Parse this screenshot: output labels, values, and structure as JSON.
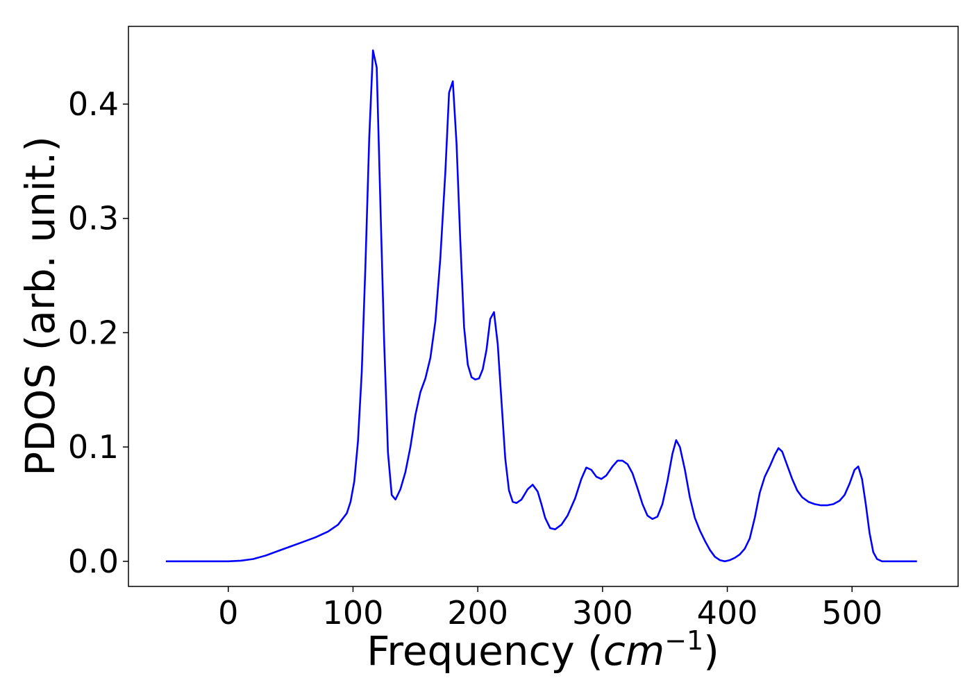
{
  "chart_data": {
    "type": "line",
    "title": "",
    "xlabel_main": "Frequency (",
    "xlabel_italic": "cm",
    "xlabel_sup": "−1",
    "xlabel_end": ")",
    "ylabel": "PDOS (arb. unit.)",
    "xlim": [
      -80,
      585
    ],
    "ylim": [
      -0.022,
      0.468
    ],
    "x_ticks": [
      0,
      100,
      200,
      300,
      400,
      500
    ],
    "x_tick_labels": [
      "0",
      "100",
      "200",
      "300",
      "400",
      "500"
    ],
    "y_ticks": [
      0.0,
      0.1,
      0.2,
      0.3,
      0.4
    ],
    "y_tick_labels": [
      "0.0",
      "0.1",
      "0.2",
      "0.3",
      "0.4"
    ],
    "grid": false,
    "series": [
      {
        "color": "#0000ff",
        "points": [
          [
            -50,
            0.0
          ],
          [
            0,
            0.0
          ],
          [
            10,
            0.0005
          ],
          [
            20,
            0.002
          ],
          [
            30,
            0.005
          ],
          [
            40,
            0.009
          ],
          [
            50,
            0.013
          ],
          [
            60,
            0.017
          ],
          [
            70,
            0.021
          ],
          [
            80,
            0.026
          ],
          [
            88,
            0.032
          ],
          [
            95,
            0.042
          ],
          [
            98,
            0.052
          ],
          [
            101,
            0.07
          ],
          [
            104,
            0.105
          ],
          [
            107,
            0.165
          ],
          [
            110,
            0.26
          ],
          [
            113,
            0.37
          ],
          [
            116,
            0.447
          ],
          [
            119,
            0.432
          ],
          [
            122,
            0.31
          ],
          [
            125,
            0.19
          ],
          [
            128,
            0.095
          ],
          [
            131,
            0.058
          ],
          [
            134,
            0.054
          ],
          [
            138,
            0.063
          ],
          [
            142,
            0.078
          ],
          [
            146,
            0.1
          ],
          [
            150,
            0.128
          ],
          [
            154,
            0.148
          ],
          [
            158,
            0.16
          ],
          [
            162,
            0.178
          ],
          [
            166,
            0.21
          ],
          [
            170,
            0.265
          ],
          [
            174,
            0.34
          ],
          [
            177,
            0.41
          ],
          [
            180,
            0.42
          ],
          [
            183,
            0.365
          ],
          [
            186,
            0.28
          ],
          [
            189,
            0.205
          ],
          [
            192,
            0.172
          ],
          [
            195,
            0.161
          ],
          [
            198,
            0.159
          ],
          [
            201,
            0.16
          ],
          [
            204,
            0.168
          ],
          [
            207,
            0.185
          ],
          [
            210,
            0.212
          ],
          [
            213,
            0.218
          ],
          [
            216,
            0.19
          ],
          [
            219,
            0.14
          ],
          [
            222,
            0.09
          ],
          [
            225,
            0.062
          ],
          [
            228,
            0.052
          ],
          [
            231,
            0.051
          ],
          [
            235,
            0.054
          ],
          [
            240,
            0.063
          ],
          [
            244,
            0.067
          ],
          [
            248,
            0.061
          ],
          [
            251,
            0.05
          ],
          [
            254,
            0.038
          ],
          [
            258,
            0.029
          ],
          [
            262,
            0.028
          ],
          [
            267,
            0.032
          ],
          [
            272,
            0.04
          ],
          [
            278,
            0.055
          ],
          [
            283,
            0.072
          ],
          [
            287,
            0.082
          ],
          [
            291,
            0.08
          ],
          [
            295,
            0.074
          ],
          [
            299,
            0.072
          ],
          [
            303,
            0.075
          ],
          [
            308,
            0.083
          ],
          [
            312,
            0.088
          ],
          [
            316,
            0.088
          ],
          [
            320,
            0.085
          ],
          [
            324,
            0.077
          ],
          [
            328,
            0.064
          ],
          [
            332,
            0.05
          ],
          [
            336,
            0.04
          ],
          [
            340,
            0.037
          ],
          [
            344,
            0.039
          ],
          [
            348,
            0.05
          ],
          [
            352,
            0.07
          ],
          [
            356,
            0.094
          ],
          [
            359,
            0.106
          ],
          [
            362,
            0.1
          ],
          [
            366,
            0.08
          ],
          [
            370,
            0.056
          ],
          [
            374,
            0.038
          ],
          [
            378,
            0.027
          ],
          [
            382,
            0.018
          ],
          [
            386,
            0.01
          ],
          [
            390,
            0.004
          ],
          [
            394,
            0.001
          ],
          [
            398,
            0.0
          ],
          [
            402,
            0.001
          ],
          [
            406,
            0.003
          ],
          [
            410,
            0.006
          ],
          [
            414,
            0.011
          ],
          [
            418,
            0.02
          ],
          [
            422,
            0.038
          ],
          [
            426,
            0.06
          ],
          [
            430,
            0.074
          ],
          [
            434,
            0.083
          ],
          [
            438,
            0.093
          ],
          [
            441,
            0.099
          ],
          [
            444,
            0.096
          ],
          [
            448,
            0.084
          ],
          [
            452,
            0.072
          ],
          [
            456,
            0.062
          ],
          [
            460,
            0.056
          ],
          [
            465,
            0.052
          ],
          [
            470,
            0.05
          ],
          [
            475,
            0.049
          ],
          [
            480,
            0.049
          ],
          [
            485,
            0.05
          ],
          [
            490,
            0.053
          ],
          [
            494,
            0.058
          ],
          [
            498,
            0.068
          ],
          [
            502,
            0.08
          ],
          [
            505,
            0.083
          ],
          [
            508,
            0.072
          ],
          [
            511,
            0.05
          ],
          [
            514,
            0.025
          ],
          [
            517,
            0.008
          ],
          [
            520,
            0.002
          ],
          [
            524,
            0.0
          ],
          [
            530,
            0.0
          ],
          [
            540,
            0.0
          ],
          [
            552,
            0.0
          ]
        ]
      }
    ]
  }
}
